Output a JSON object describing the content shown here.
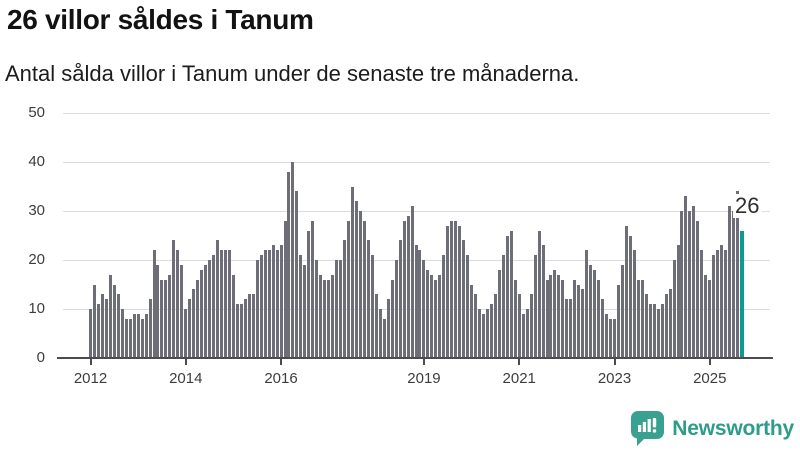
{
  "header": {
    "title": "26 villor såldes i Tanum",
    "subtitle": "Antal sålda villor i Tanum under de senaste tre månaderna."
  },
  "chart_data": {
    "type": "bar",
    "title": "26 villor såldes i Tanum",
    "subtitle": "Antal sålda villor i Tanum under de senaste tre månaderna.",
    "xlabel": "",
    "ylabel": "",
    "ylim": [
      0,
      50
    ],
    "y_ticks": [
      0,
      10,
      20,
      30,
      40,
      50
    ],
    "grid": true,
    "legend_position": "none",
    "x_monthly_start": "2012-01",
    "x_monthly_end": "2025-09",
    "x_ticks": [
      {
        "label": "2012",
        "month": 0
      },
      {
        "label": "2014",
        "month": 24
      },
      {
        "label": "2016",
        "month": 48
      },
      {
        "label": "2019",
        "month": 84
      },
      {
        "label": "2021",
        "month": 108
      },
      {
        "label": "2023",
        "month": 132
      },
      {
        "label": "2025",
        "month": 156
      }
    ],
    "series": [
      {
        "name": "Antal sålda villor (rullande tre månader)",
        "values": [
          10,
          15,
          11,
          13,
          12,
          17,
          15,
          13,
          10,
          8,
          8,
          9,
          9,
          8,
          9,
          12,
          22,
          19,
          16,
          16,
          17,
          24,
          22,
          19,
          10,
          12,
          14,
          16,
          18,
          19,
          20,
          21,
          24,
          22,
          22,
          22,
          17,
          11,
          11,
          12,
          13,
          13,
          20,
          21,
          22,
          22,
          23,
          22,
          23,
          28,
          38,
          40,
          34,
          21,
          19,
          26,
          28,
          20,
          17,
          16,
          16,
          17,
          20,
          20,
          24,
          28,
          35,
          32,
          30,
          28,
          24,
          21,
          13,
          10,
          8,
          12,
          16,
          20,
          24,
          28,
          29,
          31,
          23,
          22,
          20,
          18,
          17,
          16,
          17,
          21,
          27,
          28,
          28,
          27,
          24,
          21,
          15,
          13,
          10,
          9,
          10,
          11,
          13,
          18,
          21,
          25,
          26,
          16,
          13,
          9,
          10,
          13,
          21,
          26,
          23,
          16,
          17,
          18,
          17,
          16,
          12,
          12,
          16,
          15,
          14,
          22,
          19,
          18,
          16,
          12,
          9,
          8,
          8,
          15,
          19,
          27,
          25,
          22,
          16,
          16,
          13,
          11,
          11,
          10,
          11,
          13,
          14,
          20,
          23,
          30,
          33,
          30,
          31,
          28,
          22,
          17,
          16,
          21,
          22,
          23,
          22,
          31,
          30,
          34,
          26
        ]
      }
    ],
    "highlight": {
      "index": 164,
      "value": 26,
      "label": "26"
    },
    "colors": {
      "bar": "#6e6e78",
      "highlight": "#12998e",
      "grid": "#dcdcde",
      "axis": "#4c4c50"
    }
  },
  "footer": {
    "brand": "Newsworthy",
    "brand_color": "#2e9c8b",
    "icon": "newsworthy-bar-chart-bubble-icon"
  }
}
